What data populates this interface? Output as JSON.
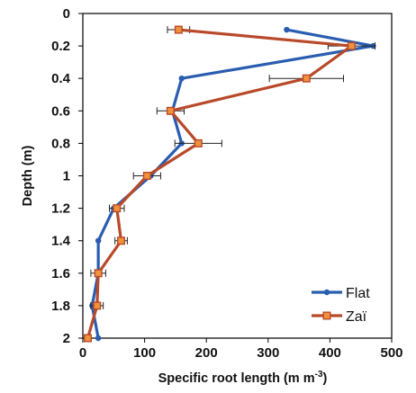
{
  "chart_data": {
    "type": "line",
    "orientation": "depth-profile",
    "xlabel_main": "Specific root length (m m",
    "xlabel_sup": "-3",
    "xlabel_tail": ")",
    "ylabel": "Depth (m)",
    "xlim": [
      0,
      500
    ],
    "ylim": [
      0,
      2
    ],
    "y_inverted": true,
    "x_ticks": [
      "0",
      "100",
      "200",
      "300",
      "400",
      "500"
    ],
    "y_ticks": [
      "0",
      "0.2",
      "0.4",
      "0.6",
      "0.8",
      "1",
      "1.2",
      "1.4",
      "1.6",
      "1.8",
      "2"
    ],
    "grid": false,
    "legend_position": "bottom-right",
    "series": [
      {
        "name": "Flat",
        "color": "#2a5db0",
        "marker": "circle",
        "points": [
          {
            "x": 330,
            "y": 0.1
          },
          {
            "x": 470,
            "y": 0.2
          },
          {
            "x": 160,
            "y": 0.4
          },
          {
            "x": 145,
            "y": 0.6
          },
          {
            "x": 160,
            "y": 0.8
          },
          {
            "x": 110,
            "y": 1.0
          },
          {
            "x": 50,
            "y": 1.2
          },
          {
            "x": 25,
            "y": 1.4
          },
          {
            "x": 25,
            "y": 1.6
          },
          {
            "x": 15,
            "y": 1.8
          },
          {
            "x": 25,
            "y": 2.0
          }
        ]
      },
      {
        "name": "Zaï",
        "color": "#b84a2a",
        "marker": "square",
        "points": [
          {
            "x": 155,
            "y": 0.1,
            "err": 18
          },
          {
            "x": 435,
            "y": 0.2,
            "err": 38
          },
          {
            "x": 362,
            "y": 0.4,
            "err": 60
          },
          {
            "x": 142,
            "y": 0.6,
            "err": 22
          },
          {
            "x": 187,
            "y": 0.8,
            "err": 38
          },
          {
            "x": 104,
            "y": 1.0,
            "err": 22
          },
          {
            "x": 55,
            "y": 1.2,
            "err": 12
          },
          {
            "x": 62,
            "y": 1.4,
            "err": 10
          },
          {
            "x": 25,
            "y": 1.6,
            "err": 12
          },
          {
            "x": 23,
            "y": 1.8,
            "err": 10
          },
          {
            "x": 8,
            "y": 2.0,
            "err": 0
          }
        ]
      }
    ]
  }
}
